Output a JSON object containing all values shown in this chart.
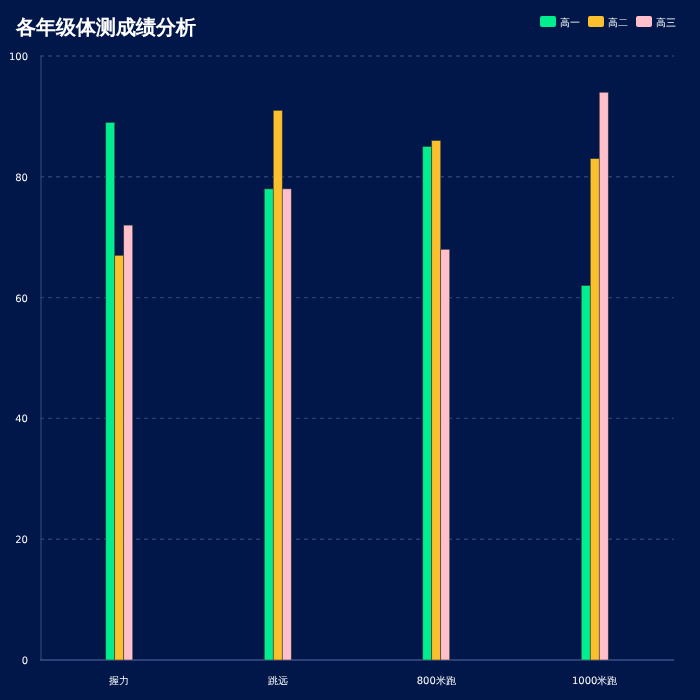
{
  "chart_data": {
    "type": "bar",
    "title": "各年级体测成绩分析",
    "categories": [
      "握力",
      "跳远",
      "800米跑",
      "1000米跑"
    ],
    "series": [
      {
        "name": "高一",
        "color": "#00ee90",
        "values": [
          89,
          78,
          85,
          62
        ]
      },
      {
        "name": "高二",
        "color": "#fbc02d",
        "values": [
          67,
          91,
          86,
          83
        ]
      },
      {
        "name": "高三",
        "color": "#ffc0cb",
        "values": [
          72,
          78,
          68,
          94
        ]
      }
    ],
    "ylim": [
      0,
      100
    ],
    "yticks": [
      0,
      20,
      40,
      60,
      80,
      100
    ],
    "grid": "y",
    "legend": "top right"
  }
}
